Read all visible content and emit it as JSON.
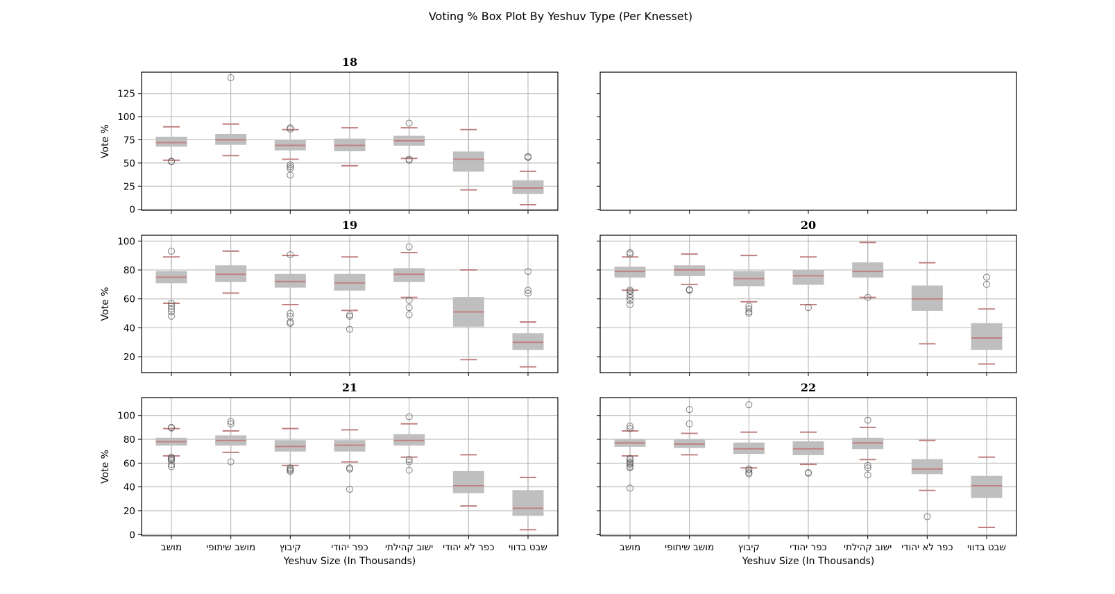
{
  "suptitle": "Voting % Box Plot By Yeshuv Type (Per Knesset)",
  "colors": {
    "box": "#bfbfbf",
    "median": "#c08080",
    "caps": "#c08080",
    "whisker": "#bfbfbf",
    "outlier": "#555555",
    "grid": "#b0b0b0"
  },
  "chart_data": {
    "type": "box",
    "categories": [
      "מושב",
      "מושב שיתופי",
      "קיבוץ",
      "כפר יהודי",
      "ישוב קהילתי",
      "כפר לא יהודי",
      "שבט בדווי"
    ],
    "xlabel": "Yeshuv Size (In Thousands)",
    "ylabel": "Vote %",
    "grid": true,
    "panels": [
      {
        "title": "18",
        "ylim": [
          -1,
          148
        ],
        "yticks": [
          0,
          25,
          50,
          75,
          100,
          125
        ],
        "boxes": [
          {
            "q1": 68,
            "median": 72,
            "q3": 78,
            "whislo": 53,
            "whishi": 89,
            "fliers": [
              52,
              51.5
            ]
          },
          {
            "q1": 70,
            "median": 75,
            "q3": 81,
            "whislo": 58,
            "whishi": 92,
            "fliers": [
              142
            ]
          },
          {
            "q1": 64,
            "median": 69,
            "q3": 75,
            "whislo": 54,
            "whishi": 86,
            "fliers": [
              88,
              86.5,
              48,
              46,
              44,
              37
            ]
          },
          {
            "q1": 63,
            "median": 69,
            "q3": 76,
            "whislo": 47,
            "whishi": 88,
            "fliers": []
          },
          {
            "q1": 69,
            "median": 74,
            "q3": 79,
            "whislo": 55,
            "whishi": 88,
            "fliers": [
              93,
              54,
              53
            ]
          },
          {
            "q1": 41,
            "median": 54,
            "q3": 62,
            "whislo": 21,
            "whishi": 86,
            "fliers": []
          },
          {
            "q1": 17,
            "median": 23,
            "q3": 31,
            "whislo": 5,
            "whishi": 41,
            "fliers": [
              57,
              56
            ]
          }
        ]
      },
      {
        "title": "",
        "ylim": [
          -1,
          148
        ],
        "yticks": [
          0,
          25,
          50,
          75,
          100,
          125
        ],
        "empty": true,
        "boxes": []
      },
      {
        "title": "19",
        "ylim": [
          9,
          104
        ],
        "yticks": [
          20,
          40,
          60,
          80,
          100
        ],
        "boxes": [
          {
            "q1": 71,
            "median": 75,
            "q3": 79,
            "whislo": 57,
            "whishi": 89,
            "fliers": [
              93,
              57,
              55,
              53,
              51,
              48
            ]
          },
          {
            "q1": 72,
            "median": 77,
            "q3": 83,
            "whislo": 64,
            "whishi": 93,
            "fliers": []
          },
          {
            "q1": 68,
            "median": 72,
            "q3": 77,
            "whislo": 56,
            "whishi": 90,
            "fliers": [
              90.5,
              50,
              48,
              44,
              43
            ]
          },
          {
            "q1": 66,
            "median": 71,
            "q3": 77,
            "whislo": 52,
            "whishi": 89,
            "fliers": [
              49,
              48,
              39
            ]
          },
          {
            "q1": 72,
            "median": 77,
            "q3": 81,
            "whislo": 61,
            "whishi": 92,
            "fliers": [
              96,
              59,
              54,
              49
            ]
          },
          {
            "q1": 41,
            "median": 51,
            "q3": 61,
            "whislo": 18,
            "whishi": 80,
            "fliers": []
          },
          {
            "q1": 25,
            "median": 30,
            "q3": 36,
            "whislo": 13,
            "whishi": 44,
            "fliers": [
              79,
              66,
              64
            ]
          }
        ]
      },
      {
        "title": "20",
        "ylim": [
          9,
          104
        ],
        "yticks": [
          20,
          40,
          60,
          80,
          100
        ],
        "boxes": [
          {
            "q1": 75,
            "median": 79,
            "q3": 82,
            "whislo": 66,
            "whishi": 89,
            "fliers": [
              92,
              91,
              66,
              65,
              63,
              61,
              59,
              56
            ]
          },
          {
            "q1": 76,
            "median": 80,
            "q3": 83,
            "whislo": 70,
            "whishi": 91,
            "fliers": [
              66.5,
              66
            ]
          },
          {
            "q1": 69,
            "median": 74,
            "q3": 79,
            "whislo": 58,
            "whishi": 90,
            "fliers": [
              55,
              53,
              51,
              50
            ]
          },
          {
            "q1": 70,
            "median": 76,
            "q3": 80,
            "whislo": 56,
            "whishi": 89,
            "fliers": [
              54
            ]
          },
          {
            "q1": 75,
            "median": 79,
            "q3": 85,
            "whislo": 61,
            "whishi": 99,
            "fliers": [
              61
            ]
          },
          {
            "q1": 52,
            "median": 60,
            "q3": 69,
            "whislo": 29,
            "whishi": 85,
            "fliers": []
          },
          {
            "q1": 25,
            "median": 33,
            "q3": 43,
            "whislo": 15,
            "whishi": 53,
            "fliers": [
              75,
              70
            ]
          }
        ]
      },
      {
        "title": "21",
        "ylim": [
          -1,
          115
        ],
        "yticks": [
          0,
          20,
          40,
          60,
          80,
          100
        ],
        "boxes": [
          {
            "q1": 75,
            "median": 78,
            "q3": 81,
            "whislo": 66,
            "whishi": 89,
            "fliers": [
              90,
              89.5,
              65,
              64,
              63,
              62,
              59,
              57
            ]
          },
          {
            "q1": 75,
            "median": 79,
            "q3": 83,
            "whislo": 69,
            "whishi": 87,
            "fliers": [
              95,
              93,
              61
            ]
          },
          {
            "q1": 70,
            "median": 74,
            "q3": 79,
            "whislo": 58,
            "whishi": 89,
            "fliers": [
              56,
              55,
              54,
              53
            ]
          },
          {
            "q1": 70,
            "median": 75,
            "q3": 79,
            "whislo": 61,
            "whishi": 88,
            "fliers": [
              56,
              55,
              38
            ]
          },
          {
            "q1": 75,
            "median": 79,
            "q3": 84,
            "whislo": 65,
            "whishi": 93,
            "fliers": [
              99,
              63,
              61,
              54
            ]
          },
          {
            "q1": 35,
            "median": 41,
            "q3": 53,
            "whislo": 24,
            "whishi": 67,
            "fliers": []
          },
          {
            "q1": 16,
            "median": 22,
            "q3": 37,
            "whislo": 4,
            "whishi": 48,
            "fliers": []
          }
        ]
      },
      {
        "title": "22",
        "ylim": [
          -1,
          115
        ],
        "yticks": [
          0,
          20,
          40,
          60,
          80,
          100
        ],
        "boxes": [
          {
            "q1": 74,
            "median": 77,
            "q3": 80,
            "whislo": 66,
            "whishi": 87,
            "fliers": [
              91,
              89,
              64,
              63,
              61,
              60,
              59,
              57,
              56,
              39
            ]
          },
          {
            "q1": 73,
            "median": 76,
            "q3": 80,
            "whislo": 67,
            "whishi": 85,
            "fliers": [
              105,
              93
            ]
          },
          {
            "q1": 68,
            "median": 72,
            "q3": 77,
            "whislo": 56,
            "whishi": 86,
            "fliers": [
              109,
              55,
              54,
              52,
              51
            ]
          },
          {
            "q1": 67,
            "median": 72,
            "q3": 78,
            "whislo": 59,
            "whishi": 86,
            "fliers": [
              52,
              51.5
            ]
          },
          {
            "q1": 72,
            "median": 77,
            "q3": 81,
            "whislo": 63,
            "whishi": 90,
            "fliers": [
              96,
              58,
              56,
              50
            ]
          },
          {
            "q1": 51,
            "median": 55,
            "q3": 63,
            "whislo": 37,
            "whishi": 79,
            "fliers": [
              15
            ]
          },
          {
            "q1": 31,
            "median": 41,
            "q3": 49,
            "whislo": 6,
            "whishi": 65,
            "fliers": []
          }
        ]
      }
    ]
  }
}
